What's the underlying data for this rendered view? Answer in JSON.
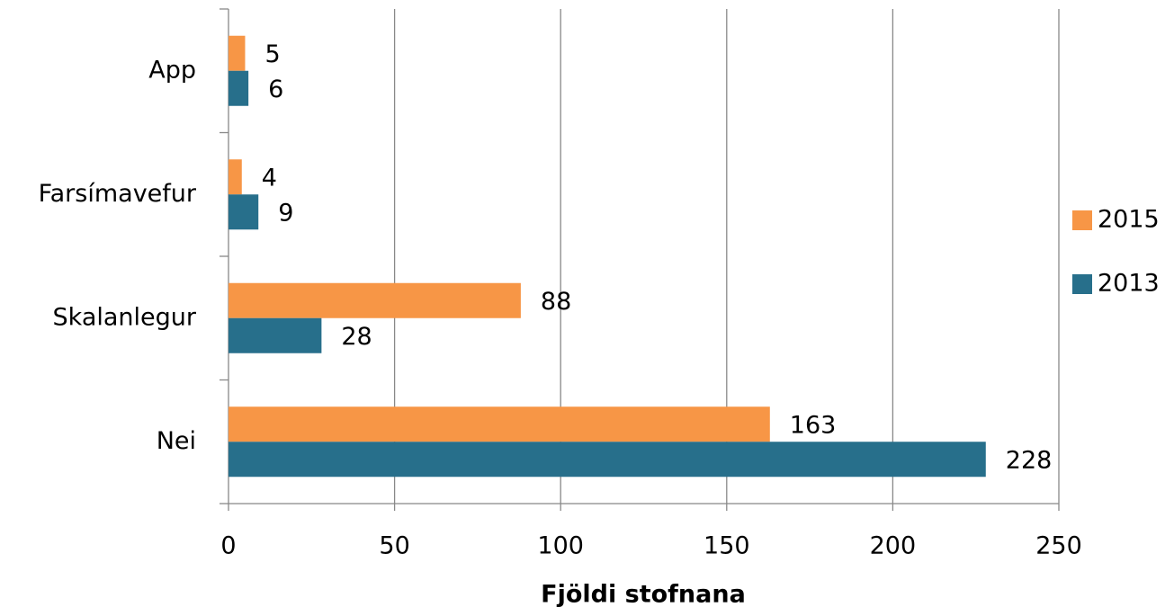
{
  "chart_data": {
    "type": "hbar",
    "xlabel": "Fjöldi stofnana",
    "categories": [
      "App",
      "Farsímavefur",
      "Skalanlegur",
      "Nei"
    ],
    "series": [
      {
        "name": "2015",
        "color": "#f79646",
        "values": [
          5,
          4,
          88,
          163
        ]
      },
      {
        "name": "2013",
        "color": "#276f8b",
        "values": [
          6,
          9,
          28,
          228
        ]
      }
    ],
    "xlim": [
      0,
      250
    ],
    "xticks": [
      0,
      50,
      100,
      150,
      200,
      250
    ],
    "grid": true,
    "legend": "right"
  }
}
